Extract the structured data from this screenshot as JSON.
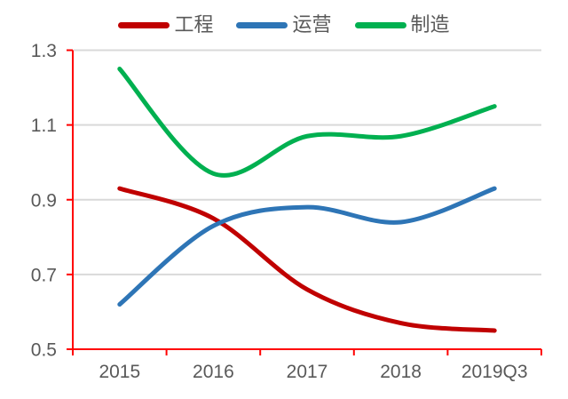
{
  "legend": {
    "items": [
      {
        "label": "工程",
        "color": "#C00000"
      },
      {
        "label": "运营",
        "color": "#2E75B6"
      },
      {
        "label": "制造",
        "color": "#00B050"
      }
    ]
  },
  "chart_data": {
    "type": "line",
    "smooth": true,
    "categories": [
      "2015",
      "2016",
      "2017",
      "2018",
      "2019Q3"
    ],
    "series": [
      {
        "name": "工程",
        "color": "#C00000",
        "values": [
          0.93,
          0.85,
          0.66,
          0.57,
          0.55
        ]
      },
      {
        "name": "运营",
        "color": "#2E75B6",
        "values": [
          0.62,
          0.83,
          0.88,
          0.84,
          0.93
        ]
      },
      {
        "name": "制造",
        "color": "#00B050",
        "values": [
          1.25,
          0.97,
          1.07,
          1.07,
          1.15
        ]
      }
    ],
    "title": "",
    "xlabel": "",
    "ylabel": "",
    "ylim": [
      0.5,
      1.3
    ],
    "yticks": [
      0.5,
      0.7,
      0.9,
      1.1,
      1.3
    ],
    "ytick_labels": [
      "0.5",
      "0.7",
      "0.9",
      "1.1",
      "1.3"
    ],
    "grid": true,
    "legend_position": "top",
    "axis_color": "#FF0000",
    "gridline_color": "#D9D9D9",
    "tick_label_color": "#595959",
    "line_width": 5
  }
}
